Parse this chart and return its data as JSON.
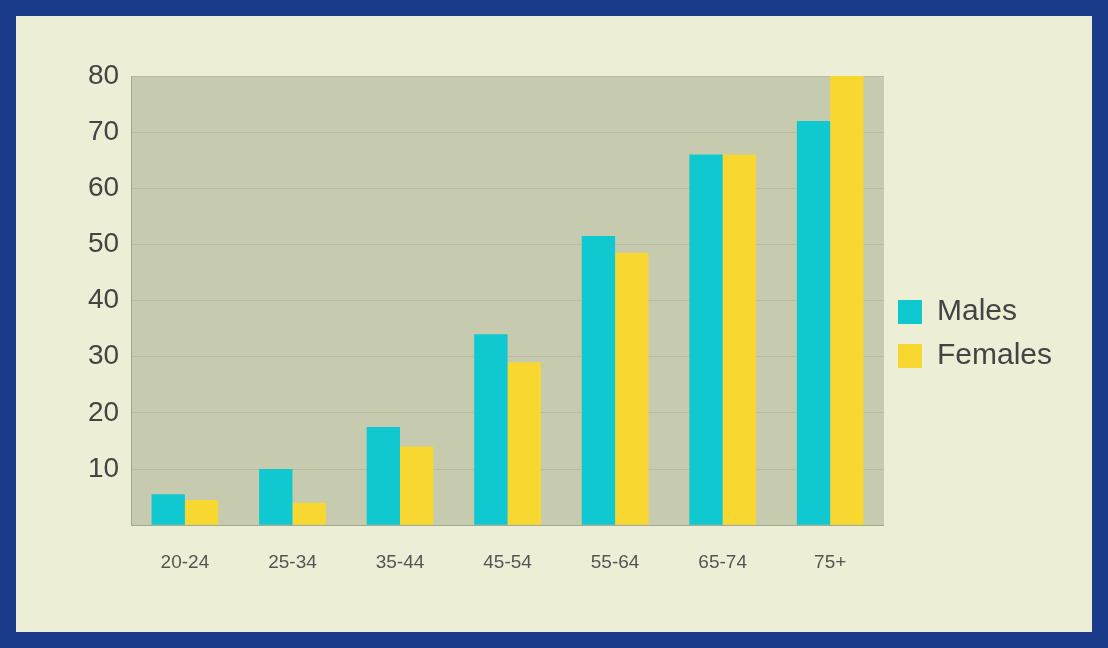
{
  "chart_data": {
    "type": "bar",
    "categories": [
      "20-24",
      "25-34",
      "35-44",
      "45-54",
      "55-64",
      "65-74",
      "75+"
    ],
    "series": [
      {
        "name": "Males",
        "color": "#10c8d0",
        "values": [
          5.5,
          10,
          17.5,
          34,
          51.5,
          66,
          72
        ]
      },
      {
        "name": "Females",
        "color": "#f8d830",
        "values": [
          4.5,
          4,
          14,
          29,
          48.5,
          66,
          80
        ]
      }
    ],
    "ylim": [
      0,
      80
    ],
    "yticks": [
      {
        "value": 0,
        "label": null
      },
      10,
      20,
      30,
      40,
      50,
      60,
      70,
      80
    ],
    "grid": "y",
    "legend": "right"
  }
}
